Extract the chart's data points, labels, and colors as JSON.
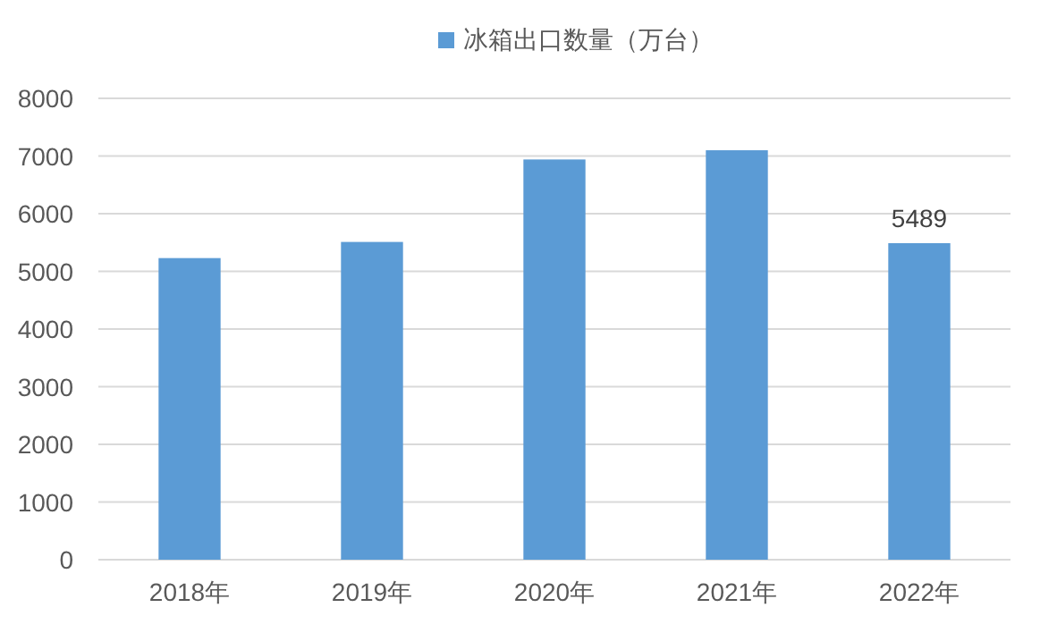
{
  "chart_data": {
    "type": "bar",
    "categories": [
      "2018年",
      "2019年",
      "2020年",
      "2021年",
      "2022年"
    ],
    "series": [
      {
        "name": "冰箱出口数量（万台）",
        "color": "#5b9bd5",
        "values": [
          5230,
          5510,
          6940,
          7100,
          5489
        ],
        "value_labels": [
          null,
          null,
          null,
          null,
          "5489"
        ]
      }
    ],
    "ylim": [
      0,
      8000
    ],
    "yticks": [
      0,
      1000,
      2000,
      3000,
      4000,
      5000,
      6000,
      7000,
      8000
    ],
    "grid": "y",
    "legend": "top"
  }
}
